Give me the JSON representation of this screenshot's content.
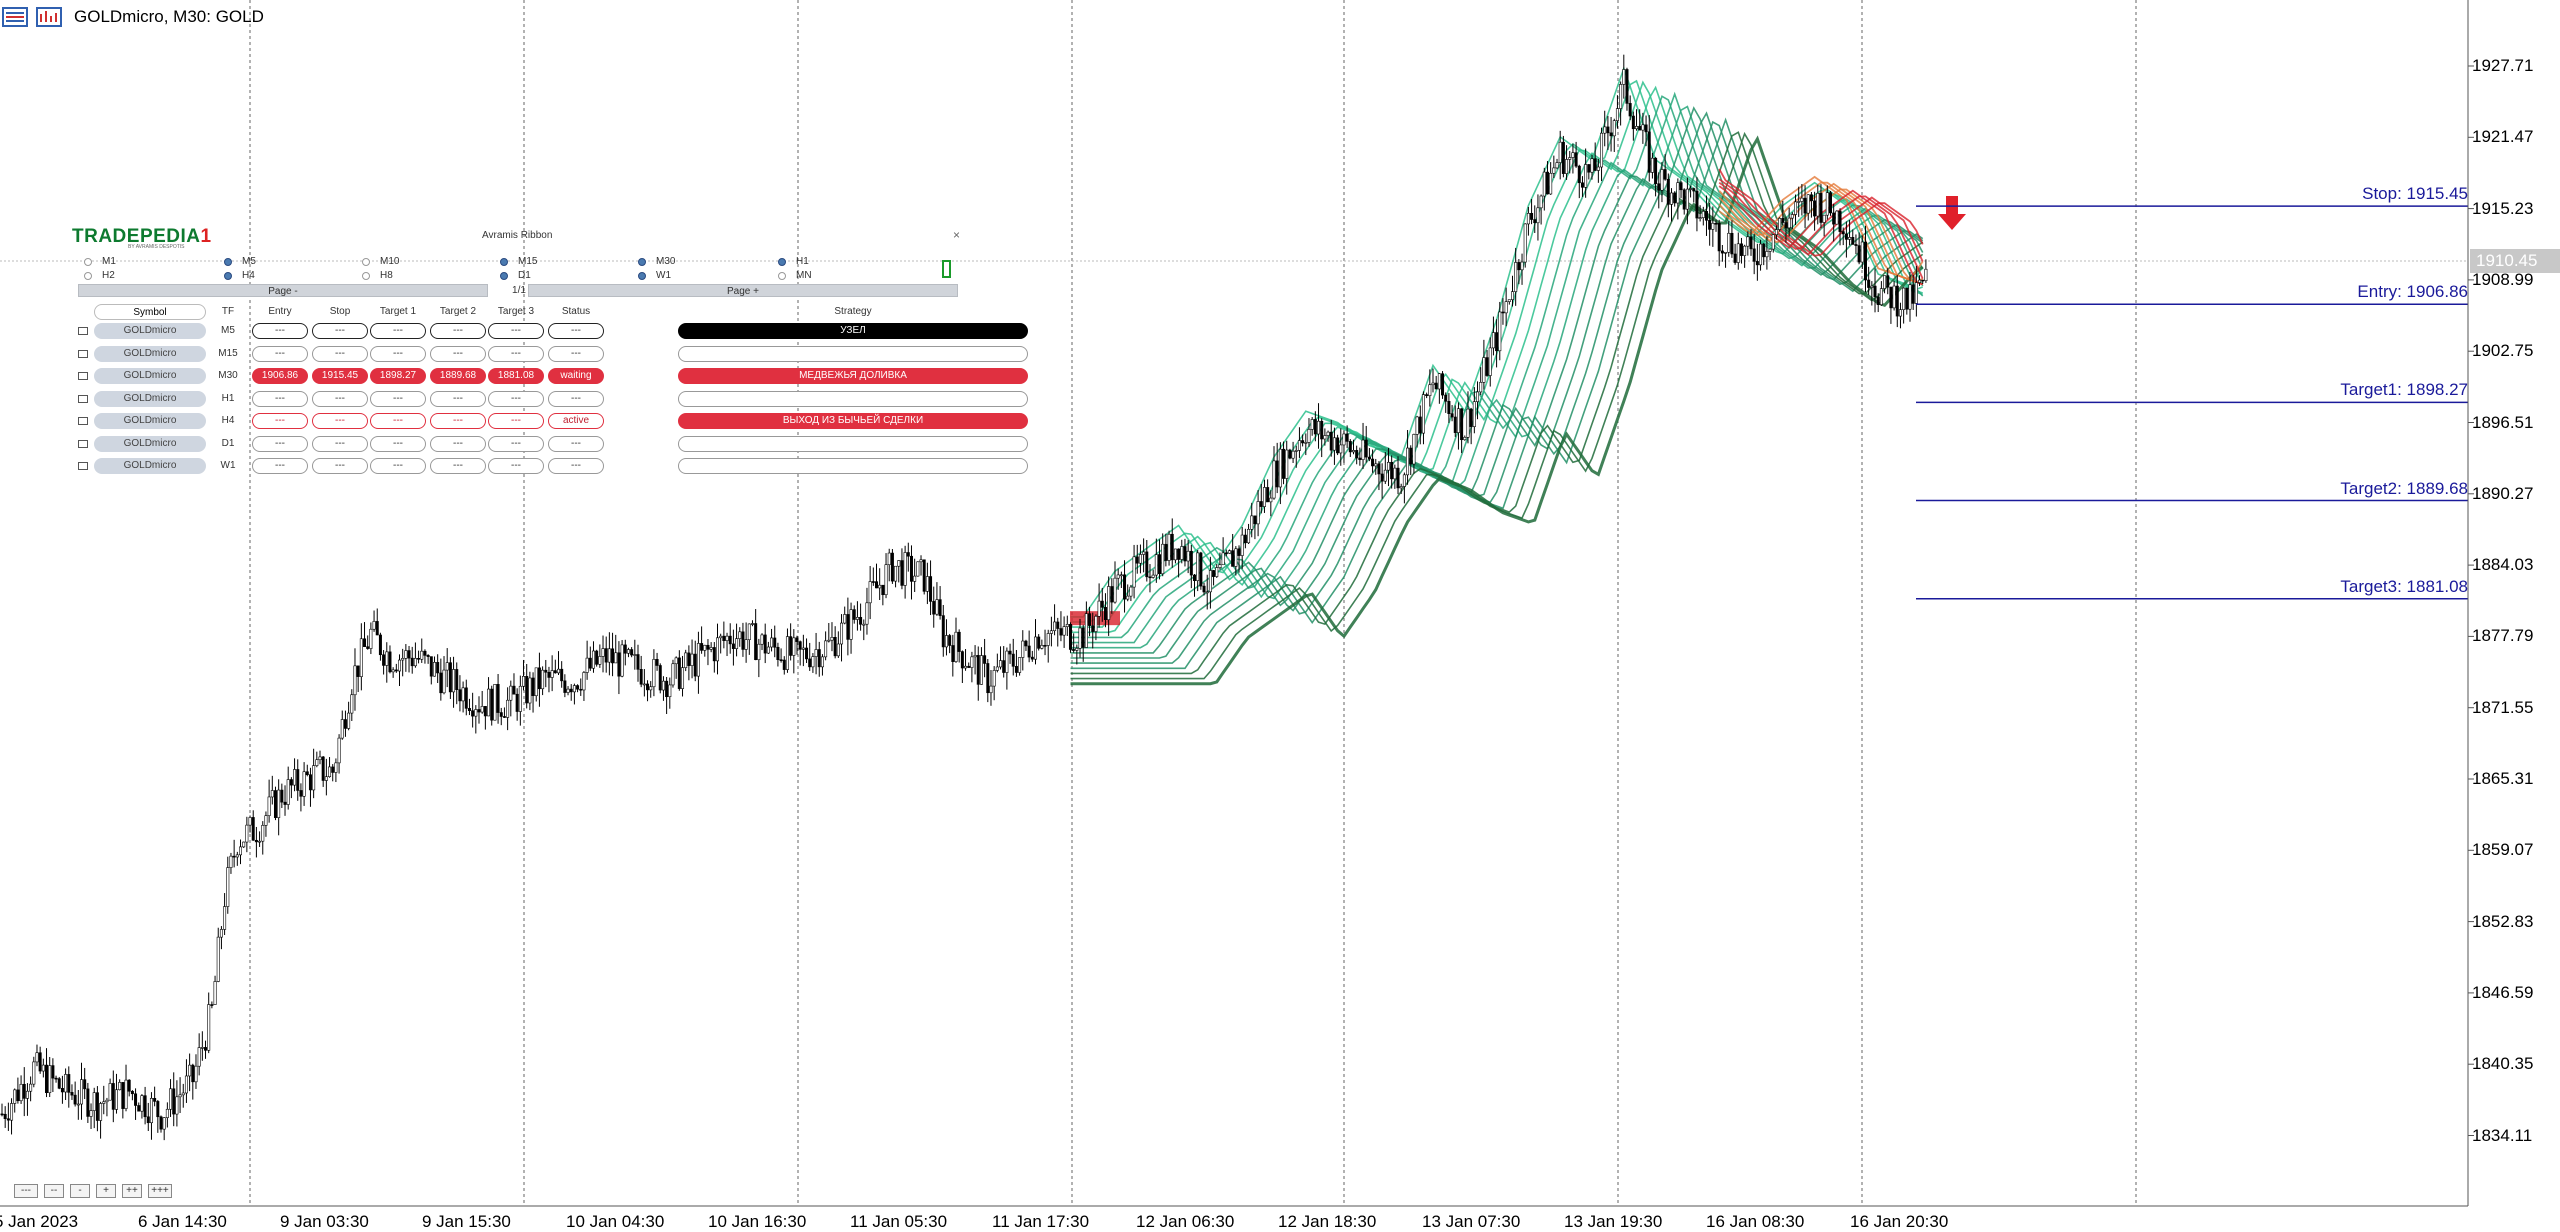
{
  "window": {
    "title": "GOLDmicro, M30:  GOLD"
  },
  "price_axis": {
    "labels": [
      "1927.71",
      "1921.47",
      "1915.23",
      "1908.99",
      "1902.75",
      "1896.51",
      "1890.27",
      "1884.03",
      "1877.79",
      "1871.55",
      "1865.31",
      "1859.07",
      "1852.83",
      "1846.59",
      "1840.35",
      "1834.11"
    ],
    "current": "1910.45"
  },
  "time_axis": {
    "labels": [
      "5 Jan 2023",
      "6 Jan 14:30",
      "9 Jan 03:30",
      "9 Jan 15:30",
      "10 Jan 04:30",
      "10 Jan 16:30",
      "11 Jan 05:30",
      "11 Jan 17:30",
      "12 Jan 06:30",
      "12 Jan 18:30",
      "13 Jan 07:30",
      "13 Jan 19:30",
      "16 Jan 08:30",
      "16 Jan 20:30"
    ]
  },
  "levels": [
    {
      "label": "Stop: 1915.45",
      "price": 1915.45
    },
    {
      "label": "Entry: 1906.86",
      "price": 1906.86
    },
    {
      "label": "Target1: 1898.27",
      "price": 1898.27
    },
    {
      "label": "Target2: 1889.68",
      "price": 1889.68
    },
    {
      "label": "Target3: 1881.08",
      "price": 1881.08
    }
  ],
  "panel": {
    "logo": "TRADEPEDIA",
    "logo_tail": "1",
    "logo_sub": "BY AVRAMIS DESPOTIS",
    "title": "Avramis Ribbon",
    "close": "×",
    "timeframes": [
      {
        "label": "M1",
        "on": false
      },
      {
        "label": "M5",
        "on": true
      },
      {
        "label": "M10",
        "on": false
      },
      {
        "label": "M15",
        "on": true
      },
      {
        "label": "M30",
        "on": true
      },
      {
        "label": "H1",
        "on": true
      },
      {
        "label": "H2",
        "on": false
      },
      {
        "label": "H4",
        "on": true
      },
      {
        "label": "H8",
        "on": false
      },
      {
        "label": "D1",
        "on": true
      },
      {
        "label": "W1",
        "on": true
      },
      {
        "label": "MN",
        "on": false
      }
    ],
    "page_minus": "Page -",
    "page_indicator": "1/1",
    "page_plus": "Page +",
    "headers": {
      "symbol": "Symbol",
      "tf": "TF",
      "entry": "Entry",
      "stop": "Stop",
      "t1": "Target 1",
      "t2": "Target 2",
      "t3": "Target 3",
      "status": "Status",
      "strategy": "Strategy"
    },
    "rows": [
      {
        "symbol": "GOLDmicro",
        "tf": "M5",
        "entry": "---",
        "stop": "---",
        "t1": "---",
        "t2": "---",
        "t3": "---",
        "status": "---",
        "strategy": "УЗЕЛ",
        "style": "black"
      },
      {
        "symbol": "GOLDmicro",
        "tf": "M15",
        "entry": "---",
        "stop": "---",
        "t1": "---",
        "t2": "---",
        "t3": "---",
        "status": "---",
        "strategy": "",
        "style": "gray"
      },
      {
        "symbol": "GOLDmicro",
        "tf": "M30",
        "entry": "1906.86",
        "stop": "1915.45",
        "t1": "1898.27",
        "t2": "1889.68",
        "t3": "1881.08",
        "status": "waiting",
        "strategy": "МЕДВЕЖЬЯ ДОЛИВКА",
        "style": "red"
      },
      {
        "symbol": "GOLDmicro",
        "tf": "H1",
        "entry": "---",
        "stop": "---",
        "t1": "---",
        "t2": "---",
        "t3": "---",
        "status": "---",
        "strategy": "",
        "style": "gray"
      },
      {
        "symbol": "GOLDmicro",
        "tf": "H4",
        "entry": "---",
        "stop": "---",
        "t1": "---",
        "t2": "---",
        "t3": "---",
        "status": "active",
        "strategy": "ВЫХОД ИЗ БЫЧЬЕЙ СДЕЛКИ",
        "style": "redborder"
      },
      {
        "symbol": "GOLDmicro",
        "tf": "D1",
        "entry": "---",
        "stop": "---",
        "t1": "---",
        "t2": "---",
        "t3": "---",
        "status": "---",
        "strategy": "",
        "style": "gray"
      },
      {
        "symbol": "GOLDmicro",
        "tf": "W1",
        "entry": "---",
        "stop": "---",
        "t1": "---",
        "t2": "---",
        "t3": "---",
        "status": "---",
        "strategy": "",
        "style": "gray"
      }
    ]
  },
  "nav_buttons": [
    "---",
    "--",
    "-",
    "+",
    "++",
    "+++"
  ],
  "colors": {
    "level_line": "#1a1a9a",
    "ribbon_green": "#2bbf8c",
    "ribbon_dark": "#1f6b3a",
    "ribbon_orange": "#e57a3a",
    "ribbon_red": "#d8202a"
  },
  "chart_data": {
    "type": "candlestick",
    "symbol": "GOLDmicro",
    "timeframe": "M30",
    "ylim": [
      1830.0,
      1932.0
    ],
    "close_path": [
      [
        0,
        1836
      ],
      [
        10,
        1840
      ],
      [
        20,
        1838
      ],
      [
        30,
        1837
      ],
      [
        40,
        1838
      ],
      [
        50,
        1836
      ],
      [
        60,
        1839
      ],
      [
        66,
        1845
      ],
      [
        70,
        1855
      ],
      [
        74,
        1860
      ],
      [
        80,
        1861
      ],
      [
        88,
        1864
      ],
      [
        100,
        1866
      ],
      [
        104,
        1866
      ],
      [
        110,
        1874
      ],
      [
        116,
        1878
      ],
      [
        122,
        1876
      ],
      [
        130,
        1876
      ],
      [
        140,
        1874
      ],
      [
        150,
        1872
      ],
      [
        160,
        1872
      ],
      [
        170,
        1874
      ],
      [
        180,
        1874
      ],
      [
        190,
        1876
      ],
      [
        200,
        1875
      ],
      [
        210,
        1874
      ],
      [
        220,
        1876
      ],
      [
        230,
        1878
      ],
      [
        240,
        1877
      ],
      [
        250,
        1876
      ],
      [
        260,
        1877
      ],
      [
        270,
        1880
      ],
      [
        280,
        1884
      ],
      [
        290,
        1883
      ],
      [
        296,
        1878
      ],
      [
        310,
        1874
      ],
      [
        320,
        1876
      ],
      [
        326,
        1878
      ],
      [
        340,
        1878
      ],
      [
        350,
        1882
      ],
      [
        360,
        1884
      ],
      [
        370,
        1886
      ],
      [
        380,
        1882
      ],
      [
        390,
        1886
      ],
      [
        400,
        1892
      ],
      [
        410,
        1896
      ],
      [
        420,
        1895
      ],
      [
        430,
        1893
      ],
      [
        440,
        1892
      ],
      [
        450,
        1900
      ],
      [
        460,
        1896
      ],
      [
        470,
        1904
      ],
      [
        480,
        1914
      ],
      [
        490,
        1920
      ],
      [
        500,
        1918
      ],
      [
        510,
        1926
      ],
      [
        520,
        1918
      ],
      [
        530,
        1916
      ],
      [
        540,
        1913
      ],
      [
        550,
        1911
      ],
      [
        560,
        1914
      ],
      [
        570,
        1916
      ],
      [
        580,
        1914
      ],
      [
        590,
        1908
      ],
      [
        600,
        1907
      ],
      [
        605,
        1909
      ]
    ]
  }
}
